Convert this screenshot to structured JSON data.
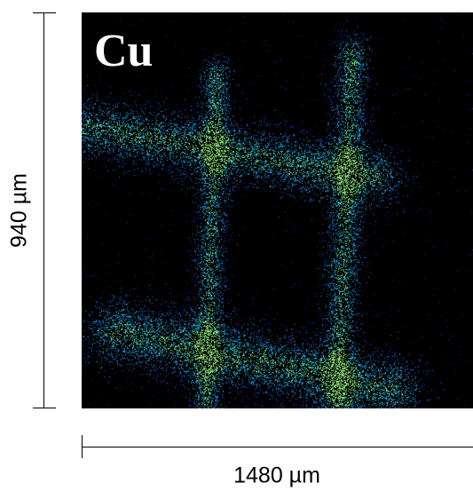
{
  "element_label": "Cu",
  "scale": {
    "height_label": "940 µm",
    "width_label": "1480 µm"
  },
  "colors": {
    "background": "#000000",
    "map_low": "#1a2ad8",
    "map_mid": "#18b6e6",
    "map_high": "#8fe67a"
  }
}
